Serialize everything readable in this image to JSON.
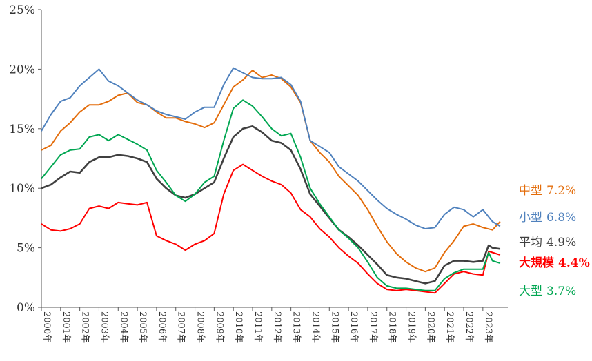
{
  "chart_data": {
    "type": "line",
    "title": "",
    "xlabel": "",
    "ylabel": "",
    "ylim": [
      0,
      25
    ],
    "xlim": [
      "2000-01",
      "2024-04"
    ],
    "yticks": [
      "0%",
      "5%",
      "10%",
      "15%",
      "20%",
      "25%"
    ],
    "ytick_values": [
      0,
      5,
      10,
      15,
      20,
      25
    ],
    "xticks": [
      "2000年",
      "2001年",
      "2002年",
      "2003年",
      "2004年",
      "2005年",
      "2006年",
      "2007年",
      "2008年",
      "2009年",
      "2010年",
      "2011年",
      "2012年",
      "2013年",
      "2014年",
      "2015年",
      "2016年",
      "2017年",
      "2018年",
      "2019年",
      "2020年",
      "2021年",
      "2022年",
      "2023年"
    ],
    "xtick_values": [
      2000,
      2001,
      2002,
      2003,
      2004,
      2005,
      2006,
      2007,
      2008,
      2009,
      2010,
      2011,
      2012,
      2013,
      2014,
      2015,
      2016,
      2017,
      2018,
      2019,
      2020,
      2021,
      2022,
      2023
    ],
    "grid": false,
    "legend": "right, labels at line ends",
    "series": [
      {
        "name": "中型",
        "end_label": "7.2%",
        "color": "#E36C0A",
        "x": [
          2000.0,
          2000.5,
          2001.0,
          2001.5,
          2002.0,
          2002.5,
          2003.0,
          2003.5,
          2004.0,
          2004.5,
          2005.0,
          2005.5,
          2006.0,
          2006.5,
          2007.0,
          2007.5,
          2008.0,
          2008.5,
          2009.0,
          2009.5,
          2010.0,
          2010.5,
          2011.0,
          2011.5,
          2012.0,
          2012.5,
          2013.0,
          2013.5,
          2014.0,
          2014.5,
          2015.0,
          2015.5,
          2016.0,
          2016.5,
          2017.0,
          2017.5,
          2018.0,
          2018.5,
          2019.0,
          2019.5,
          2020.0,
          2020.5,
          2021.0,
          2021.5,
          2022.0,
          2022.5,
          2023.0,
          2023.5,
          2023.9
        ],
        "y": [
          13.2,
          13.6,
          14.8,
          15.5,
          16.4,
          17.0,
          17.0,
          17.3,
          17.8,
          18.0,
          17.2,
          17.0,
          16.4,
          15.9,
          15.9,
          15.6,
          15.4,
          15.1,
          15.5,
          17.0,
          18.5,
          19.1,
          19.9,
          19.3,
          19.5,
          19.2,
          18.5,
          17.2,
          14.0,
          13.0,
          12.2,
          11.0,
          10.2,
          9.4,
          8.2,
          6.8,
          5.5,
          4.5,
          3.8,
          3.3,
          3.0,
          3.3,
          4.6,
          5.6,
          6.8,
          7.0,
          6.7,
          6.5,
          7.2
        ]
      },
      {
        "name": "小型",
        "end_label": "6.8%",
        "color": "#4F81BD",
        "x": [
          2000.0,
          2000.5,
          2001.0,
          2001.5,
          2002.0,
          2002.5,
          2003.0,
          2003.5,
          2004.0,
          2004.5,
          2005.0,
          2005.5,
          2006.0,
          2006.5,
          2007.0,
          2007.5,
          2008.0,
          2008.5,
          2009.0,
          2009.5,
          2010.0,
          2010.5,
          2011.0,
          2011.5,
          2012.0,
          2012.5,
          2013.0,
          2013.5,
          2014.0,
          2014.5,
          2015.0,
          2015.5,
          2016.0,
          2016.5,
          2017.0,
          2017.5,
          2018.0,
          2018.5,
          2019.0,
          2019.5,
          2020.0,
          2020.5,
          2021.0,
          2021.5,
          2022.0,
          2022.5,
          2023.0,
          2023.5,
          2023.9
        ],
        "y": [
          14.8,
          16.2,
          17.3,
          17.6,
          18.6,
          19.3,
          20.0,
          19.0,
          18.6,
          18.0,
          17.4,
          17.0,
          16.5,
          16.2,
          16.0,
          15.8,
          16.4,
          16.8,
          16.8,
          18.7,
          20.1,
          19.7,
          19.3,
          19.2,
          19.2,
          19.3,
          18.7,
          17.3,
          14.0,
          13.5,
          13.0,
          11.8,
          11.2,
          10.6,
          9.8,
          9.0,
          8.3,
          7.8,
          7.4,
          6.9,
          6.6,
          6.7,
          7.8,
          8.4,
          8.2,
          7.6,
          8.2,
          7.2,
          6.8
        ]
      },
      {
        "name": "平均",
        "end_label": "4.9%",
        "color": "#404040",
        "x": [
          2000.0,
          2000.5,
          2001.0,
          2001.5,
          2002.0,
          2002.5,
          2003.0,
          2003.5,
          2004.0,
          2004.5,
          2005.0,
          2005.5,
          2006.0,
          2006.5,
          2007.0,
          2007.5,
          2008.0,
          2008.5,
          2009.0,
          2009.5,
          2010.0,
          2010.5,
          2011.0,
          2011.5,
          2012.0,
          2012.5,
          2013.0,
          2013.5,
          2014.0,
          2014.5,
          2015.0,
          2015.5,
          2016.0,
          2016.5,
          2017.0,
          2017.5,
          2018.0,
          2018.5,
          2019.0,
          2019.5,
          2020.0,
          2020.5,
          2021.0,
          2021.5,
          2022.0,
          2022.5,
          2023.0,
          2023.3,
          2023.5,
          2023.9
        ],
        "y": [
          10.0,
          10.3,
          10.9,
          11.4,
          11.3,
          12.2,
          12.6,
          12.6,
          12.8,
          12.7,
          12.5,
          12.2,
          10.8,
          10.0,
          9.4,
          9.2,
          9.5,
          10.0,
          10.5,
          12.5,
          14.3,
          15.0,
          15.2,
          14.7,
          14.0,
          13.8,
          13.2,
          11.6,
          9.5,
          8.5,
          7.5,
          6.5,
          5.9,
          5.2,
          4.4,
          3.6,
          2.7,
          2.5,
          2.4,
          2.2,
          2.0,
          2.2,
          3.5,
          3.9,
          3.9,
          3.8,
          3.9,
          5.2,
          5.0,
          4.9
        ]
      },
      {
        "name": "大規模",
        "end_label": "4.4%",
        "color": "#FF0000",
        "x": [
          2000.0,
          2000.5,
          2001.0,
          2001.5,
          2002.0,
          2002.5,
          2003.0,
          2003.5,
          2004.0,
          2004.5,
          2005.0,
          2005.5,
          2006.0,
          2006.5,
          2007.0,
          2007.5,
          2008.0,
          2008.5,
          2009.0,
          2009.5,
          2010.0,
          2010.5,
          2011.0,
          2011.5,
          2012.0,
          2012.5,
          2013.0,
          2013.5,
          2014.0,
          2014.5,
          2015.0,
          2015.5,
          2016.0,
          2016.5,
          2017.0,
          2017.5,
          2018.0,
          2018.5,
          2019.0,
          2019.5,
          2020.0,
          2020.5,
          2021.0,
          2021.5,
          2022.0,
          2022.5,
          2023.0,
          2023.3,
          2023.5,
          2023.9
        ],
        "y": [
          7.0,
          6.5,
          6.4,
          6.6,
          7.0,
          8.3,
          8.5,
          8.3,
          8.8,
          8.7,
          8.6,
          8.8,
          6.0,
          5.6,
          5.3,
          4.8,
          5.3,
          5.6,
          6.2,
          9.5,
          11.5,
          12.0,
          11.5,
          11.0,
          10.6,
          10.3,
          9.6,
          8.2,
          7.6,
          6.6,
          5.9,
          5.0,
          4.3,
          3.7,
          2.8,
          2.0,
          1.5,
          1.4,
          1.5,
          1.4,
          1.3,
          1.2,
          2.0,
          2.8,
          3.0,
          2.8,
          2.7,
          4.7,
          4.6,
          4.4
        ]
      },
      {
        "name": "大型",
        "end_label": "3.7%",
        "color": "#00A651",
        "x": [
          2000.0,
          2000.5,
          2001.0,
          2001.5,
          2002.0,
          2002.5,
          2003.0,
          2003.5,
          2004.0,
          2004.5,
          2005.0,
          2005.5,
          2006.0,
          2006.5,
          2007.0,
          2007.5,
          2008.0,
          2008.5,
          2009.0,
          2009.5,
          2010.0,
          2010.5,
          2011.0,
          2011.5,
          2012.0,
          2012.5,
          2013.0,
          2013.5,
          2014.0,
          2014.5,
          2015.0,
          2015.5,
          2016.0,
          2016.5,
          2017.0,
          2017.5,
          2018.0,
          2018.5,
          2019.0,
          2019.5,
          2020.0,
          2020.5,
          2021.0,
          2021.5,
          2022.0,
          2022.5,
          2023.0,
          2023.3,
          2023.5,
          2023.9
        ],
        "y": [
          10.8,
          11.8,
          12.8,
          13.2,
          13.3,
          14.3,
          14.5,
          14.0,
          14.5,
          14.1,
          13.7,
          13.2,
          11.5,
          10.5,
          9.4,
          8.9,
          9.5,
          10.5,
          11.0,
          14.0,
          16.7,
          17.4,
          16.9,
          16.0,
          15.0,
          14.4,
          14.6,
          12.6,
          10.0,
          8.7,
          7.6,
          6.5,
          5.8,
          5.0,
          3.8,
          2.5,
          1.8,
          1.6,
          1.6,
          1.5,
          1.4,
          1.4,
          2.4,
          2.9,
          3.2,
          3.2,
          3.2,
          4.6,
          3.9,
          3.7
        ]
      }
    ]
  }
}
